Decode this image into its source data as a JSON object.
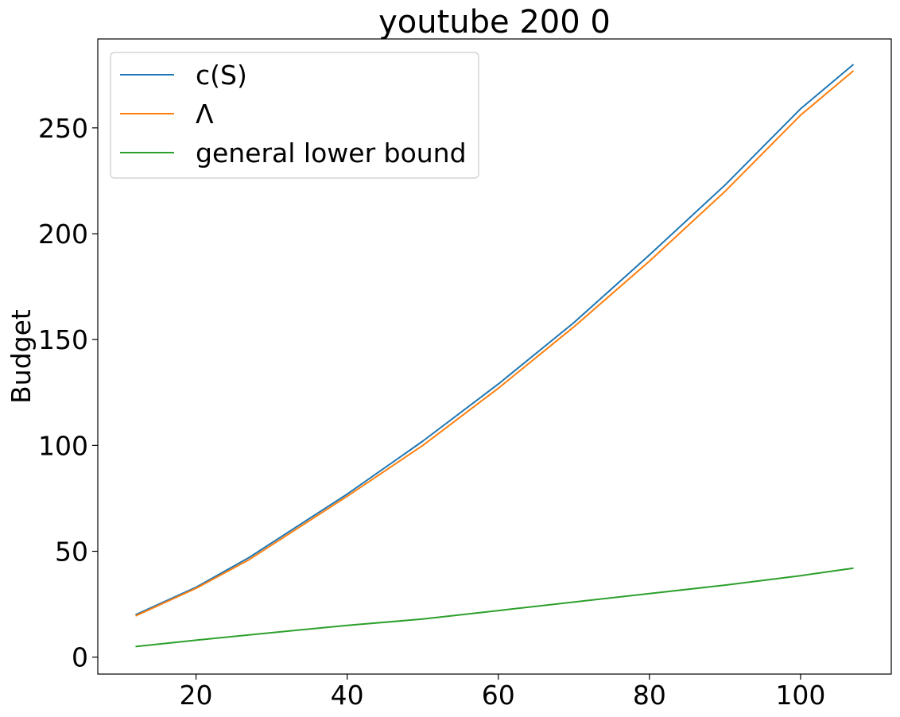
{
  "chart_data": {
    "type": "line",
    "title": "youtube 200 0",
    "xlabel": "",
    "ylabel": "Budget",
    "xlim": [
      7,
      112
    ],
    "ylim": [
      -8,
      292
    ],
    "xticks": [
      20,
      40,
      60,
      80,
      100
    ],
    "yticks": [
      0,
      50,
      100,
      150,
      200,
      250
    ],
    "grid": false,
    "legend_position": "upper left",
    "x": [
      12,
      20,
      27,
      40,
      50,
      60,
      70,
      80,
      90,
      100,
      107
    ],
    "series": [
      {
        "name": "c(S)",
        "color": "#1f77b4",
        "values": [
          20,
          33,
          47,
          77,
          102,
          129,
          158,
          190,
          223,
          259,
          280
        ]
      },
      {
        "name": "Λ",
        "color": "#ff7f0e",
        "values": [
          19.5,
          32.5,
          46,
          76,
          100,
          127,
          156,
          187,
          220,
          256,
          277
        ]
      },
      {
        "name": "general lower bound",
        "color": "#2ca02c",
        "values": [
          5,
          8,
          10.5,
          15,
          18,
          22,
          26,
          30,
          34,
          38.5,
          42
        ]
      }
    ]
  }
}
